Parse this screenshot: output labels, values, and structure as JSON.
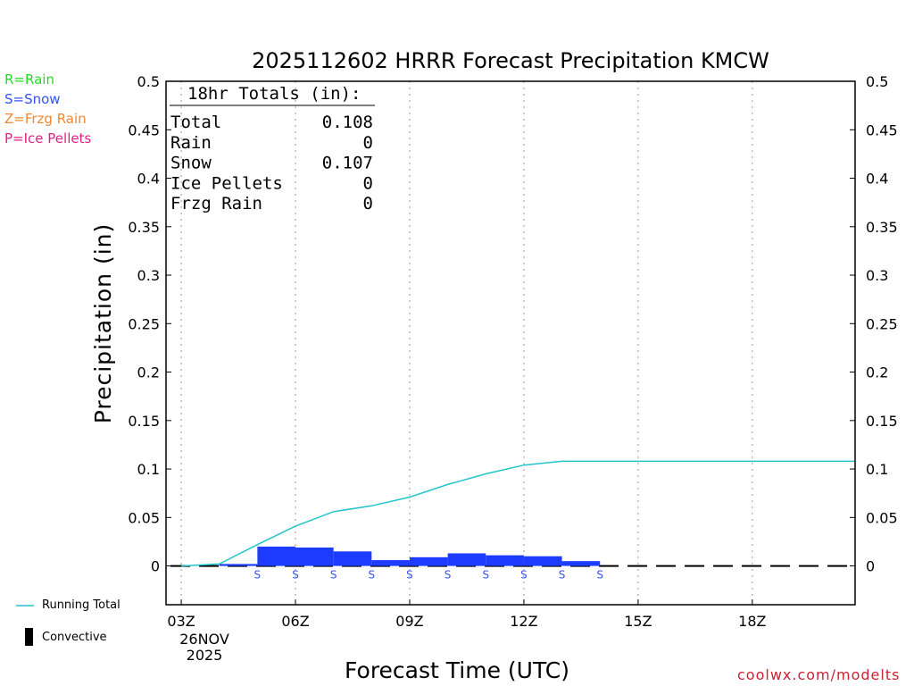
{
  "chart_data": {
    "type": "bar",
    "title": "2025112602 HRRR Forecast Precipitation KMCW",
    "xlabel": "Forecast Time (UTC)",
    "ylabel": "Precipitation (in)",
    "ylim": [
      -0.04,
      0.5
    ],
    "xlim_hours": [
      2.6,
      20.7
    ],
    "yticks": [
      0,
      0.05,
      0.1,
      0.15,
      0.2,
      0.25,
      0.3,
      0.35,
      0.4,
      0.45,
      0.5
    ],
    "ytick_labels": [
      "0",
      "0.05",
      "0.1",
      "0.15",
      "0.2",
      "0.25",
      "0.3",
      "0.35",
      "0.4",
      "0.45",
      "0.5"
    ],
    "xticks": [
      {
        "hour": 3,
        "label": "03Z"
      },
      {
        "hour": 6,
        "label": "06Z"
      },
      {
        "hour": 9,
        "label": "09Z"
      },
      {
        "hour": 12,
        "label": "12Z"
      },
      {
        "hour": 15,
        "label": "15Z"
      },
      {
        "hour": 18,
        "label": "18Z"
      }
    ],
    "date_label_day": "26NOV",
    "date_label_year": "2025",
    "hours": [
      3,
      4,
      5,
      6,
      7,
      8,
      9,
      10,
      11,
      12,
      13,
      14,
      15,
      16,
      17,
      18,
      19,
      20
    ],
    "hourly_precip": [
      0,
      0.002,
      0.02,
      0.019,
      0.015,
      0.006,
      0.009,
      0.013,
      0.011,
      0.01,
      0.005,
      0,
      0,
      0,
      0,
      0,
      0,
      0
    ],
    "precip_type": [
      "",
      "S",
      "S",
      "S",
      "S",
      "S",
      "S",
      "S",
      "S",
      "S",
      "S",
      "",
      "",
      "",
      "",
      "",
      "",
      ""
    ],
    "convective": [
      0,
      0,
      0,
      0,
      0,
      0,
      0,
      0,
      0,
      0,
      0,
      0,
      0,
      0,
      0,
      0,
      0,
      0
    ],
    "running_total": {
      "hours": [
        3,
        4,
        5,
        6,
        7,
        8,
        9,
        10,
        11,
        12,
        13,
        14,
        15,
        16,
        17,
        18,
        19,
        20,
        20.7
      ],
      "values": [
        0,
        0.002,
        0.022,
        0.041,
        0.056,
        0.062,
        0.071,
        0.084,
        0.095,
        0.104,
        0.108,
        0.108,
        0.108,
        0.108,
        0.108,
        0.108,
        0.108,
        0.108,
        0.108
      ]
    },
    "totals_box": {
      "header": "18hr Totals (in):",
      "rows": [
        {
          "label": "Total",
          "value": "0.108"
        },
        {
          "label": "Rain",
          "value": "0"
        },
        {
          "label": "Snow",
          "value": "0.107"
        },
        {
          "label": "Ice Pellets",
          "value": "0"
        },
        {
          "label": "Frzg Rain",
          "value": "0"
        }
      ]
    }
  },
  "type_legend": [
    {
      "text": "R=Rain",
      "color": "#22dd22"
    },
    {
      "text": "S=Snow",
      "color": "#3355ee"
    },
    {
      "text": "Z=Frzg Rain",
      "color": "#ee8833"
    },
    {
      "text": "P=Ice Pellets",
      "color": "#dd2288"
    }
  ],
  "series_legend": {
    "running_total": "Running Total",
    "convective": "Convective"
  },
  "colors": {
    "bar": "#1e3cff",
    "running_total": "#22c4cc",
    "snow_marker": "#3355ee",
    "watermark": "#cc2233"
  },
  "watermark": "coolwx.com/modelts"
}
